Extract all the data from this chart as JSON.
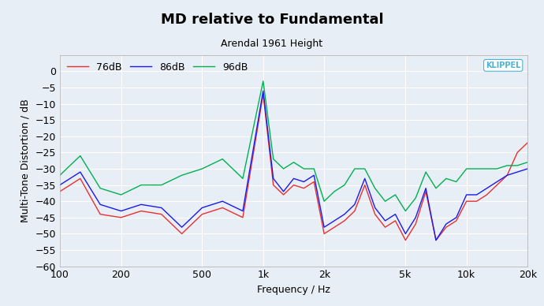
{
  "title": "MD relative to Fundamental",
  "subtitle": "Arendal 1961 Height",
  "xlabel": "Frequency / Hz",
  "ylabel": "Multi-Tone Distortion / dB",
  "xlim": [
    100,
    20000
  ],
  "ylim": [
    -60,
    5
  ],
  "yticks": [
    0,
    -5,
    -10,
    -15,
    -20,
    -25,
    -30,
    -35,
    -40,
    -45,
    -50,
    -55,
    -60
  ],
  "xtick_labels": [
    "100",
    "200",
    "500",
    "1k",
    "2k",
    "5k",
    "10k",
    "20k"
  ],
  "xtick_vals": [
    100,
    200,
    500,
    1000,
    2000,
    5000,
    10000,
    20000
  ],
  "background_color": "#e8eef5",
  "grid_color": "#ffffff",
  "line_colors": {
    "76dB": "#e83030",
    "86dB": "#1a1aed",
    "96dB": "#00b050"
  },
  "legend_labels": [
    "76dB",
    "86dB",
    "96dB"
  ],
  "klippel_color": "#4db3d6",
  "title_fontsize": 13,
  "subtitle_fontsize": 9,
  "axis_label_fontsize": 9,
  "tick_fontsize": 9,
  "freqs": [
    100,
    126,
    158,
    200,
    251,
    316,
    398,
    501,
    631,
    794,
    1000,
    1122,
    1259,
    1413,
    1585,
    1778,
    1995,
    2239,
    2512,
    2818,
    3162,
    3548,
    3981,
    4467,
    5012,
    5623,
    6310,
    7079,
    7943,
    8913,
    10000,
    11220,
    12589,
    14125,
    15849,
    17783,
    19953
  ],
  "data_76dB": [
    -37,
    -33,
    -44,
    -45,
    -43,
    -44,
    -50,
    -44,
    -42,
    -45,
    -7,
    -35,
    -38,
    -35,
    -36,
    -34,
    -50,
    -48,
    -46,
    -43,
    -35,
    -44,
    -48,
    -46,
    -52,
    -47,
    -37,
    -52,
    -48,
    -46,
    -40,
    -40,
    -38,
    -35,
    -32,
    -25,
    -22
  ],
  "data_86dB": [
    -35,
    -31,
    -41,
    -43,
    -41,
    -42,
    -48,
    -42,
    -40,
    -43,
    -6,
    -33,
    -37,
    -33,
    -34,
    -32,
    -48,
    -46,
    -44,
    -41,
    -33,
    -42,
    -46,
    -44,
    -50,
    -45,
    -36,
    -52,
    -47,
    -45,
    -38,
    -38,
    -36,
    -34,
    -32,
    -31,
    -30
  ],
  "data_96dB": [
    -32,
    -26,
    -36,
    -38,
    -35,
    -35,
    -32,
    -30,
    -27,
    -33,
    -3,
    -27,
    -30,
    -28,
    -30,
    -30,
    -40,
    -37,
    -35,
    -30,
    -30,
    -36,
    -40,
    -38,
    -43,
    -39,
    -31,
    -36,
    -33,
    -34,
    -30,
    -30,
    -30,
    -30,
    -29,
    -29,
    -28
  ]
}
